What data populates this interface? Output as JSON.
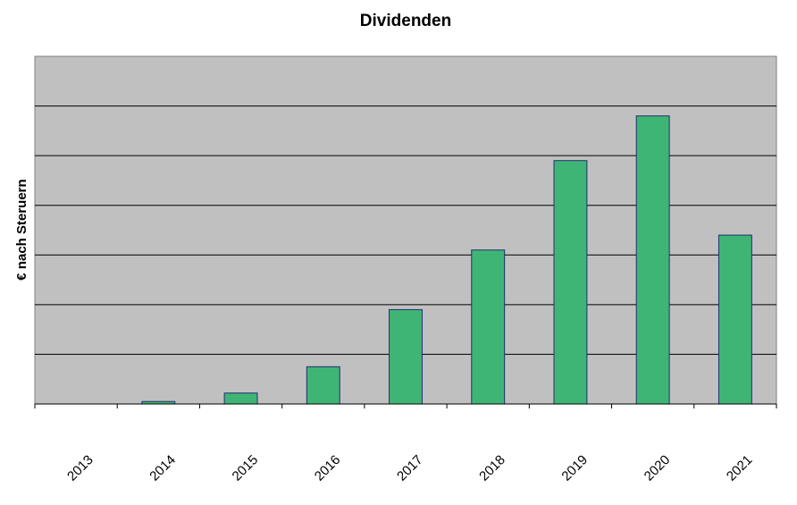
{
  "chart_data": {
    "type": "bar",
    "title": "Dividenden",
    "xlabel": "",
    "ylabel": "€ nach Steruern",
    "categories": [
      "2013",
      "2014",
      "2015",
      "2016",
      "2017",
      "2018",
      "2019",
      "2020",
      "2021"
    ],
    "values": [
      0,
      0.05,
      0.22,
      0.75,
      1.9,
      3.1,
      4.9,
      5.8,
      3.4
    ],
    "ylim": [
      0,
      7
    ],
    "grid": true,
    "legend": "none",
    "colors": {
      "bar_fill": "#3fb575",
      "bar_stroke": "#1f2f6e",
      "plot_background": "#c0c0c0",
      "grid_line": "#000000"
    }
  }
}
